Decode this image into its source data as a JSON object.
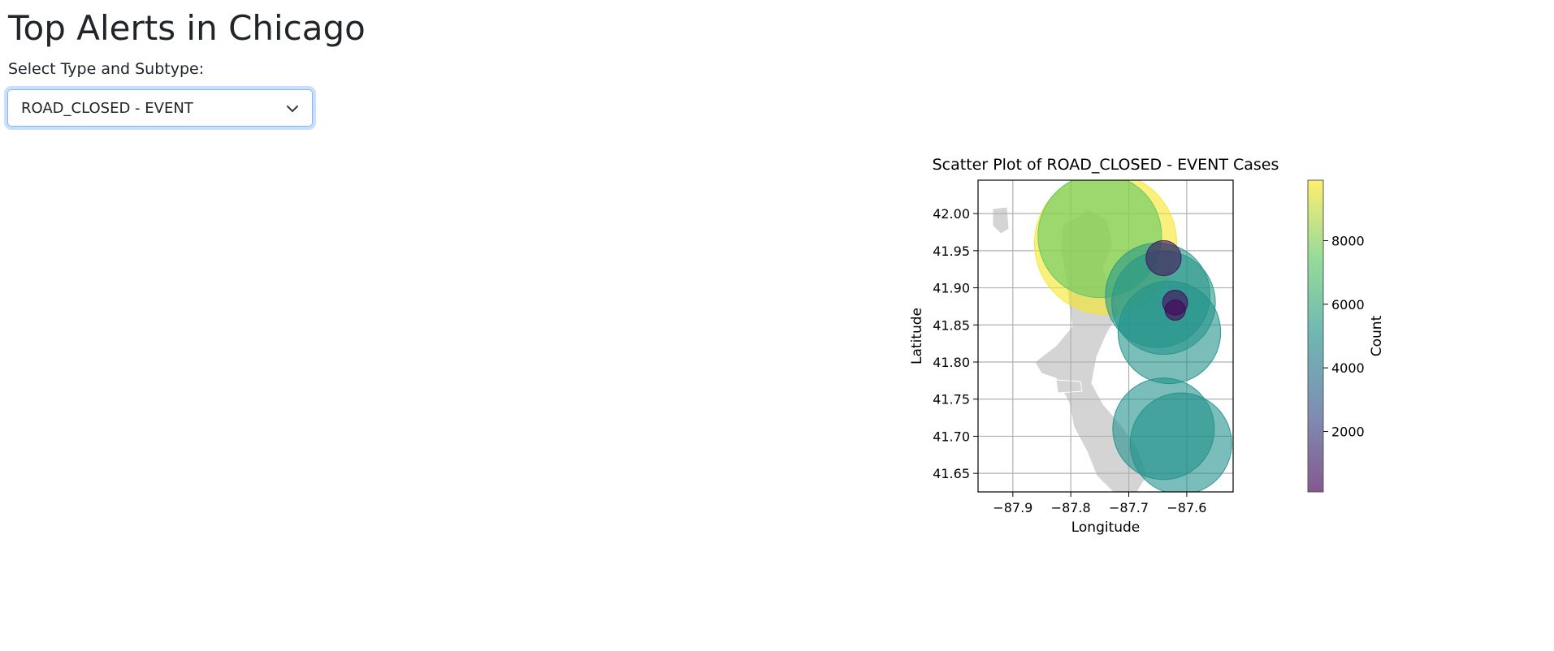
{
  "page": {
    "title": "Top Alerts in Chicago"
  },
  "filter": {
    "label": "Select Type and Subtype:",
    "selected": "ROAD_CLOSED - EVENT"
  },
  "chart_data": {
    "type": "scatter",
    "title": "Scatter Plot of ROAD_CLOSED - EVENT Cases",
    "xlabel": "Longitude",
    "ylabel": "Latitude",
    "xlim": [
      -87.96,
      -87.52
    ],
    "ylim": [
      41.625,
      42.045
    ],
    "xticks": [
      -87.9,
      -87.8,
      -87.7,
      -87.6
    ],
    "xtick_labels": [
      "−87.9",
      "−87.8",
      "−87.7",
      "−87.6"
    ],
    "yticks": [
      41.65,
      41.7,
      41.75,
      41.8,
      41.85,
      41.9,
      41.95,
      42.0
    ],
    "ytick_labels": [
      "41.65",
      "41.70",
      "41.75",
      "41.80",
      "41.85",
      "41.90",
      "41.95",
      "42.00"
    ],
    "grid": true,
    "colorbar": {
      "label": "Count",
      "range": [
        100,
        9900
      ],
      "ticks": [
        2000,
        4000,
        6000,
        8000
      ],
      "tick_labels": [
        "2000",
        "4000",
        "6000",
        "8000"
      ]
    },
    "points": [
      {
        "x": -87.74,
        "y": 41.96,
        "count": 9800
      },
      {
        "x": -87.75,
        "y": 41.97,
        "count": 7400
      },
      {
        "x": -87.65,
        "y": 41.89,
        "count": 5300
      },
      {
        "x": -87.64,
        "y": 41.88,
        "count": 5200
      },
      {
        "x": -87.63,
        "y": 41.84,
        "count": 5100
      },
      {
        "x": -87.64,
        "y": 41.71,
        "count": 5000
      },
      {
        "x": -87.61,
        "y": 41.69,
        "count": 5000
      },
      {
        "x": -87.64,
        "y": 41.94,
        "count": 600
      },
      {
        "x": -87.62,
        "y": 41.88,
        "count": 300
      },
      {
        "x": -87.62,
        "y": 41.87,
        "count": 200
      }
    ]
  }
}
